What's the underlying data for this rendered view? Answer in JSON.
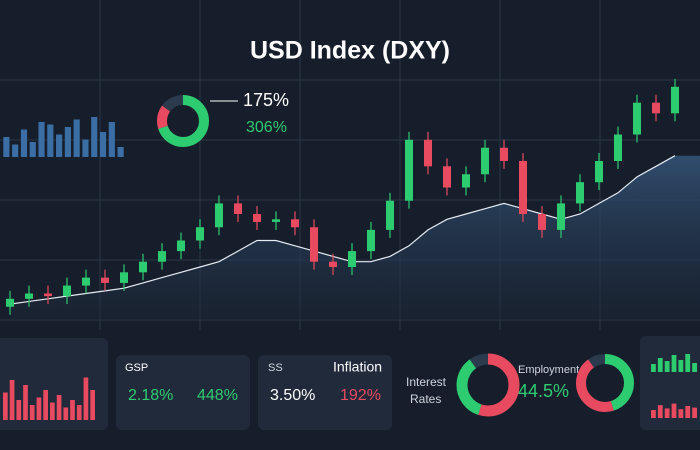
{
  "title": "USD Index (DXY)",
  "main_chart": {
    "type": "candlestick",
    "ylim": [
      0,
      100
    ],
    "up_color": "#2ecc71",
    "down_color": "#e84a5f",
    "open": [
      5,
      8,
      10,
      9,
      13,
      16,
      14,
      18,
      22,
      26,
      30,
      35,
      44,
      40,
      37,
      38,
      35,
      22,
      20,
      26,
      34,
      45,
      68,
      58,
      50,
      55,
      65,
      60,
      40,
      34,
      44,
      52,
      60,
      70,
      82,
      78
    ],
    "high": [
      11,
      13,
      13,
      16,
      19,
      19,
      21,
      25,
      29,
      33,
      38,
      47,
      47,
      43,
      41,
      41,
      38,
      25,
      29,
      37,
      48,
      71,
      71,
      61,
      58,
      68,
      68,
      63,
      43,
      47,
      55,
      63,
      73,
      85,
      85,
      91
    ],
    "low": [
      2,
      5,
      6,
      6,
      10,
      11,
      11,
      15,
      19,
      23,
      27,
      32,
      37,
      34,
      34,
      32,
      19,
      17,
      17,
      23,
      31,
      42,
      55,
      47,
      47,
      52,
      57,
      37,
      31,
      31,
      41,
      49,
      57,
      67,
      75,
      75
    ],
    "close": [
      8,
      10,
      9,
      13,
      16,
      14,
      18,
      22,
      26,
      30,
      35,
      44,
      40,
      37,
      38,
      35,
      22,
      20,
      26,
      34,
      45,
      68,
      58,
      50,
      55,
      65,
      60,
      40,
      34,
      44,
      52,
      60,
      70,
      82,
      78,
      88
    ],
    "ma": [
      6,
      7,
      8,
      9,
      10,
      11,
      12,
      14,
      16,
      18,
      20,
      22,
      26,
      30,
      30,
      28,
      26,
      24,
      22,
      22,
      24,
      28,
      34,
      38,
      40,
      42,
      44,
      42,
      40,
      38,
      40,
      44,
      48,
      54,
      58,
      62
    ]
  },
  "mini_charts": [
    {
      "type": "bar",
      "ylim": [
        0,
        100
      ],
      "color": "#3b6ea5",
      "values": [
        40,
        25,
        55,
        30,
        70,
        65,
        45,
        60,
        75,
        35,
        80,
        50,
        70,
        20
      ]
    },
    {
      "type": "bar",
      "ylim": [
        0,
        100
      ],
      "color": "#e84a5f",
      "values": [
        55,
        80,
        40,
        70,
        30,
        45,
        60,
        35,
        50,
        25,
        40,
        30,
        85,
        60
      ]
    },
    {
      "type": "bar",
      "ylim": [
        0,
        100
      ],
      "color": "#2ecc71",
      "values": [
        40,
        70,
        55,
        85,
        60,
        90,
        45
      ]
    },
    {
      "type": "bar",
      "ylim": [
        0,
        100
      ],
      "color": "#e84a5f",
      "values": [
        50,
        80,
        60,
        90,
        55,
        75,
        65
      ]
    }
  ],
  "top_donut": {
    "segments": [
      {
        "value": 70,
        "color": "#2ecc71"
      },
      {
        "value": 15,
        "color": "#e84a5f"
      },
      {
        "value": 15,
        "color": "#2c3a4d"
      }
    ],
    "values": [
      "175%",
      "306%"
    ]
  },
  "cards": [
    {
      "label": "GSP",
      "values": [
        "2.18%",
        "448%"
      ]
    },
    {
      "label": "SS",
      "title": "Inflation",
      "values": [
        "3.50%",
        "192%"
      ]
    }
  ],
  "interest": {
    "lines": [
      "Interest",
      "Rates"
    ],
    "segments": [
      {
        "value": 55,
        "color": "#e84a5f"
      },
      {
        "value": 35,
        "color": "#2ecc71"
      },
      {
        "value": 10,
        "color": "#2c3a4d"
      }
    ]
  },
  "employment": {
    "label": "Employment",
    "value": "44.5%",
    "segments": [
      {
        "value": 45,
        "color": "#2ecc71"
      },
      {
        "value": 45,
        "color": "#e84a5f"
      },
      {
        "value": 10,
        "color": "#2c3a4d"
      }
    ]
  }
}
